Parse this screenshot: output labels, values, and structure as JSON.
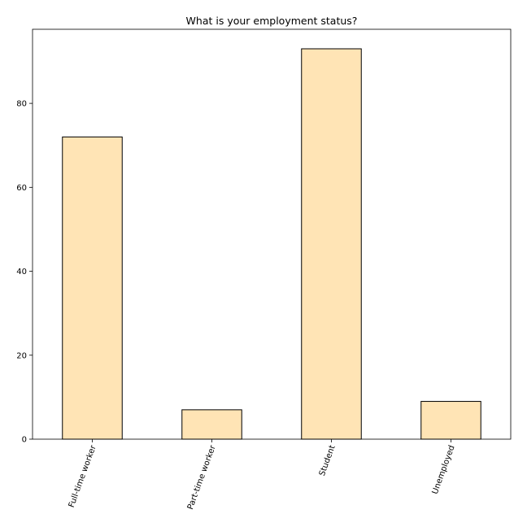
{
  "chart_data": {
    "type": "bar",
    "title": "What is your employment status?",
    "xlabel": "",
    "ylabel": "",
    "categories": [
      "Full-time worker",
      "Part-time worker",
      "Student",
      "Unemployed"
    ],
    "values": [
      72,
      7,
      93,
      9
    ],
    "ylim": [
      0,
      97.65
    ],
    "yticks": [
      0,
      20,
      40,
      60,
      80
    ],
    "xtick_rotation_degrees": 70,
    "grid": false,
    "legend": "none",
    "colors": {
      "bar_fill": "#FFE4B5",
      "bar_edge": "#000000",
      "axes": "#000000",
      "background": "#FFFFFF"
    }
  }
}
